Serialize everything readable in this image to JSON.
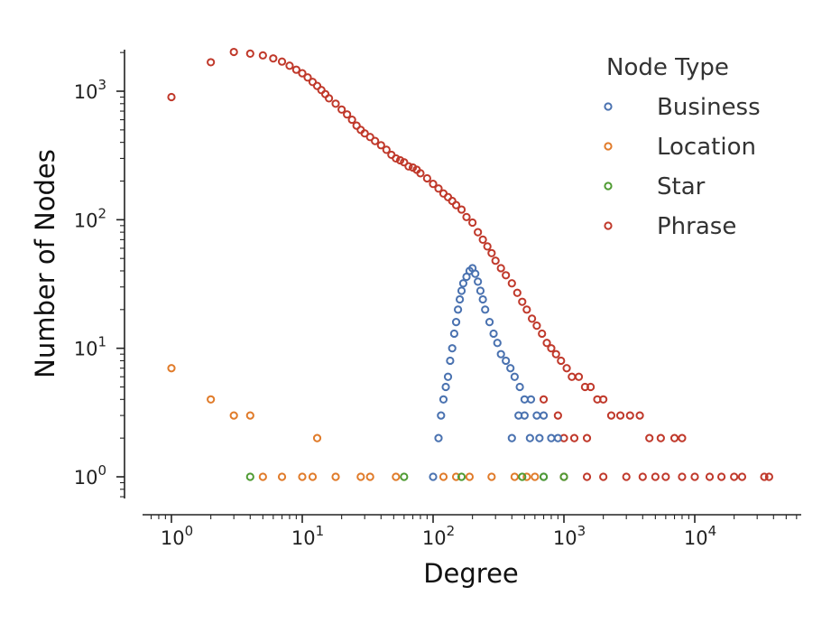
{
  "chart_data": {
    "type": "scatter",
    "title": "",
    "xlabel": "Degree",
    "ylabel": "Number of Nodes",
    "x_scale": "log",
    "y_scale": "log",
    "xlim": [
      0.6,
      60000
    ],
    "ylim": [
      0.7,
      3000
    ],
    "x_ticks": [
      {
        "base": "10",
        "exp": "0"
      },
      {
        "base": "10",
        "exp": "1"
      },
      {
        "base": "10",
        "exp": "2"
      },
      {
        "base": "10",
        "exp": "3"
      },
      {
        "base": "10",
        "exp": "4"
      }
    ],
    "y_ticks": [
      {
        "base": "10",
        "exp": "0"
      },
      {
        "base": "10",
        "exp": "1"
      },
      {
        "base": "10",
        "exp": "2"
      },
      {
        "base": "10",
        "exp": "3"
      }
    ],
    "grid": false,
    "marker": "open-circle",
    "legend": {
      "title": "Node Type",
      "placement": "top-right",
      "entries": [
        "Business",
        "Location",
        "Star",
        "Phrase"
      ]
    },
    "series": [
      {
        "name": "Phrase",
        "color": "#c0392b",
        "points": [
          [
            1,
            900
          ],
          [
            2,
            1680
          ],
          [
            3,
            2020
          ],
          [
            4,
            1960
          ],
          [
            5,
            1900
          ],
          [
            6,
            1800
          ],
          [
            7,
            1700
          ],
          [
            8,
            1580
          ],
          [
            9,
            1470
          ],
          [
            10,
            1380
          ],
          [
            11,
            1280
          ],
          [
            12,
            1180
          ],
          [
            13,
            1100
          ],
          [
            14,
            1020
          ],
          [
            15,
            950
          ],
          [
            16,
            880
          ],
          [
            18,
            800
          ],
          [
            20,
            720
          ],
          [
            22,
            660
          ],
          [
            24,
            600
          ],
          [
            26,
            540
          ],
          [
            28,
            500
          ],
          [
            30,
            470
          ],
          [
            33,
            440
          ],
          [
            36,
            410
          ],
          [
            40,
            380
          ],
          [
            44,
            350
          ],
          [
            48,
            320
          ],
          [
            52,
            300
          ],
          [
            56,
            290
          ],
          [
            60,
            280
          ],
          [
            65,
            260
          ],
          [
            70,
            255
          ],
          [
            75,
            245
          ],
          [
            80,
            230
          ],
          [
            90,
            210
          ],
          [
            100,
            190
          ],
          [
            110,
            175
          ],
          [
            120,
            160
          ],
          [
            130,
            150
          ],
          [
            140,
            140
          ],
          [
            150,
            130
          ],
          [
            165,
            120
          ],
          [
            180,
            105
          ],
          [
            200,
            95
          ],
          [
            220,
            80
          ],
          [
            240,
            70
          ],
          [
            260,
            62
          ],
          [
            280,
            55
          ],
          [
            300,
            48
          ],
          [
            330,
            42
          ],
          [
            360,
            37
          ],
          [
            400,
            32
          ],
          [
            440,
            27
          ],
          [
            480,
            23
          ],
          [
            520,
            20
          ],
          [
            570,
            17
          ],
          [
            620,
            15
          ],
          [
            680,
            13
          ],
          [
            740,
            11
          ],
          [
            800,
            10
          ],
          [
            870,
            9
          ],
          [
            950,
            8
          ],
          [
            1050,
            7
          ],
          [
            1150,
            6
          ],
          [
            1300,
            6
          ],
          [
            1450,
            5
          ],
          [
            1600,
            5
          ],
          [
            1800,
            4
          ],
          [
            2000,
            4
          ],
          [
            2300,
            3
          ],
          [
            2700,
            3
          ],
          [
            3200,
            3
          ],
          [
            3800,
            3
          ],
          [
            4500,
            2
          ],
          [
            5500,
            2
          ],
          [
            7000,
            2
          ],
          [
            8000,
            2
          ],
          [
            700,
            4
          ],
          [
            900,
            3
          ],
          [
            1000,
            2
          ],
          [
            1200,
            2
          ],
          [
            1500,
            2
          ],
          [
            1000,
            1
          ],
          [
            1500,
            1
          ],
          [
            2000,
            1
          ],
          [
            3000,
            1
          ],
          [
            4000,
            1
          ],
          [
            5000,
            1
          ],
          [
            6000,
            1
          ],
          [
            8000,
            1
          ],
          [
            10000,
            1
          ],
          [
            13000,
            1
          ],
          [
            16000,
            1
          ],
          [
            20000,
            1
          ],
          [
            23000,
            1
          ],
          [
            34000,
            1
          ],
          [
            37000,
            1
          ]
        ]
      },
      {
        "name": "Business",
        "color": "#4a72b0",
        "points": [
          [
            100,
            1
          ],
          [
            110,
            2
          ],
          [
            115,
            3
          ],
          [
            120,
            4
          ],
          [
            125,
            5
          ],
          [
            130,
            6
          ],
          [
            135,
            8
          ],
          [
            140,
            10
          ],
          [
            145,
            13
          ],
          [
            150,
            16
          ],
          [
            155,
            20
          ],
          [
            160,
            24
          ],
          [
            165,
            28
          ],
          [
            170,
            32
          ],
          [
            180,
            36
          ],
          [
            190,
            40
          ],
          [
            200,
            42
          ],
          [
            210,
            38
          ],
          [
            220,
            33
          ],
          [
            230,
            28
          ],
          [
            240,
            24
          ],
          [
            250,
            20
          ],
          [
            270,
            16
          ],
          [
            290,
            13
          ],
          [
            310,
            11
          ],
          [
            330,
            9
          ],
          [
            360,
            8
          ],
          [
            390,
            7
          ],
          [
            420,
            6
          ],
          [
            460,
            5
          ],
          [
            500,
            4
          ],
          [
            560,
            4
          ],
          [
            620,
            3
          ],
          [
            700,
            3
          ],
          [
            800,
            2
          ],
          [
            900,
            2
          ],
          [
            500,
            3
          ],
          [
            550,
            2
          ],
          [
            650,
            2
          ],
          [
            400,
            2
          ],
          [
            450,
            3
          ],
          [
            700,
            1
          ]
        ]
      },
      {
        "name": "Location",
        "color": "#e07b2a",
        "points": [
          [
            1,
            7
          ],
          [
            2,
            4
          ],
          [
            3,
            3
          ],
          [
            4,
            3
          ],
          [
            13,
            2
          ],
          [
            5,
            1
          ],
          [
            7,
            1
          ],
          [
            10,
            1
          ],
          [
            12,
            1
          ],
          [
            18,
            1
          ],
          [
            28,
            1
          ],
          [
            33,
            1
          ],
          [
            52,
            1
          ],
          [
            120,
            1
          ],
          [
            150,
            1
          ],
          [
            190,
            1
          ],
          [
            280,
            1
          ],
          [
            420,
            1
          ],
          [
            520,
            1
          ],
          [
            600,
            1
          ]
        ]
      },
      {
        "name": "Star",
        "color": "#4f9b33",
        "points": [
          [
            4,
            1
          ],
          [
            60,
            1
          ],
          [
            165,
            1
          ],
          [
            480,
            1
          ],
          [
            700,
            1
          ],
          [
            1000,
            1
          ]
        ]
      }
    ]
  }
}
